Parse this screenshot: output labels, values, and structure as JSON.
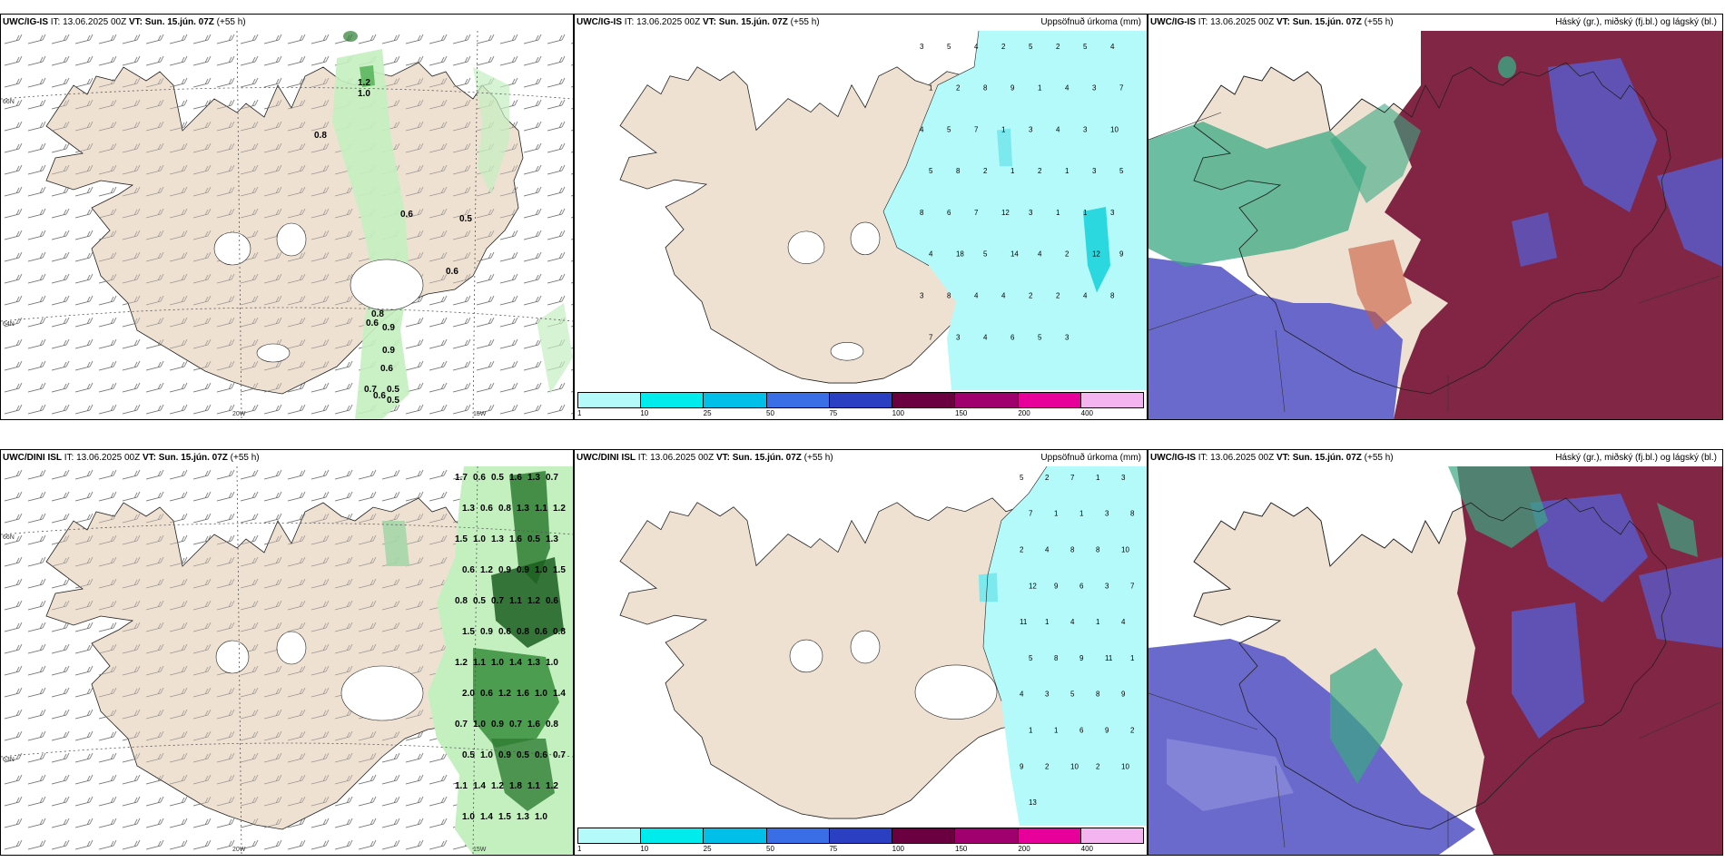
{
  "panels": {
    "p1": {
      "model": "UWC/IG-IS",
      "it": "IT: 13.06.2025 00Z",
      "vt_label": "VT:",
      "vt": "Sun. 15.jún. 07Z",
      "step": "(+55 h)",
      "right": ""
    },
    "p2": {
      "model": "UWC/IG-IS",
      "it": "IT: 13.06.2025 00Z",
      "vt_label": "VT:",
      "vt": "Sun. 15.jún. 07Z",
      "step": "(+55 h)",
      "right": "Uppsöfnuð úrkoma (mm)"
    },
    "p3": {
      "model": "UWC/IG-IS",
      "it": "IT: 13.06.2025 00Z",
      "vt_label": "VT:",
      "vt": "Sun. 15.jún. 07Z",
      "step": "(+55 h)",
      "right": "Háský (gr.), miðský (fj.bl.) og lágský (bl.)"
    },
    "p4": {
      "model": "UWC/DINI ISL",
      "it": "IT: 13.06.2025 00Z",
      "vt_label": "VT:",
      "vt": "Sun. 15.jún. 07Z",
      "step": "(+55 h)",
      "right": ""
    },
    "p5": {
      "model": "UWC/DINI ISL",
      "it": "IT: 13.06.2025 00Z",
      "vt_label": "VT:",
      "vt": "Sun. 15.jún. 07Z",
      "step": "(+55 h)",
      "right": "Uppsöfnuð úrkoma (mm)"
    },
    "p6": {
      "model": "UWC/IG-IS",
      "it": "IT: 13.06.2025 00Z",
      "vt_label": "VT:",
      "vt": "Sun. 15.jún. 07Z",
      "step": "(+55 h)",
      "right": "Háský (gr.), miðský (fj.bl.) og lágský (bl.)"
    }
  },
  "axis_labels": {
    "lon1": "20W",
    "lon2": "15W",
    "lat1": "66N",
    "lat2": "64N",
    "lat3": "63N"
  },
  "colorbar": {
    "ticks": [
      "1",
      "10",
      "25",
      "50",
      "75",
      "100",
      "150",
      "200",
      "400"
    ],
    "colors": [
      "#b4fafa",
      "#00ebeb",
      "#00bfe8",
      "#3a6ee6",
      "#2a3fc2",
      "#6a0040",
      "#a0006e",
      "#e8009a",
      "#f4b4f0"
    ]
  },
  "colors": {
    "land": "#efe1d2",
    "sea": "#ffffff",
    "precip_light": "#c4f0c0",
    "precip_dark": "#2e7d32",
    "accum": "#b4fafa",
    "cloud_high": "#3ba883",
    "cloud_mid": "#7b1a3c",
    "cloud_low": "#5a5ac8"
  },
  "p1_values": [
    "1.2",
    "1.0",
    "0.8",
    "0.6",
    "0.5",
    "0.6",
    "0.8",
    "0.6",
    "0.9",
    "0.9",
    "0.6",
    "0.7",
    "0.5",
    "0.6",
    "0.5"
  ],
  "p2_values": [
    "3",
    "5",
    "4",
    "2",
    "5",
    "2",
    "5",
    "4",
    "1",
    "2",
    "8",
    "9",
    "1",
    "4",
    "3",
    "7",
    "4",
    "5",
    "7",
    "1",
    "3",
    "4",
    "3",
    "10",
    "5",
    "8",
    "2",
    "1",
    "2",
    "1",
    "3",
    "5",
    "8",
    "6",
    "7",
    "12",
    "3",
    "1",
    "1",
    "3",
    "4",
    "18",
    "5",
    "14",
    "4",
    "2",
    "12",
    "9",
    "3",
    "8",
    "4",
    "4",
    "2",
    "2",
    "4",
    "8",
    "7",
    "3",
    "4",
    "6",
    "5",
    "3"
  ],
  "p4_values": [
    "1.7",
    "0.6",
    "0.5",
    "1.6",
    "1.3",
    "0.7",
    "1.3",
    "0.6",
    "0.8",
    "1.3",
    "1.1",
    "1.2",
    "1.5",
    "1.0",
    "1.3",
    "1.6",
    "0.5",
    "1.3",
    "0.6",
    "1.2",
    "0.9",
    "0.9",
    "1.0",
    "1.5",
    "0.8",
    "0.5",
    "0.7",
    "1.1",
    "1.2",
    "0.6",
    "1.5",
    "0.9",
    "0.6",
    "0.8",
    "0.6",
    "0.8",
    "1.2",
    "1.1",
    "1.0",
    "1.4",
    "1.3",
    "1.0",
    "2.0",
    "0.6",
    "1.2",
    "1.6",
    "1.0",
    "1.4",
    "0.7",
    "1.0",
    "0.9",
    "0.7",
    "1.6",
    "0.8",
    "0.5",
    "1.0",
    "0.9",
    "0.5",
    "0.6",
    "0.7",
    "1.1",
    "1.4",
    "1.2",
    "1.8",
    "1.1",
    "1.2",
    "1.0",
    "1.4",
    "1.5",
    "1.3",
    "1.0"
  ],
  "p5_values": [
    "5",
    "2",
    "7",
    "1",
    "3",
    "7",
    "1",
    "1",
    "3",
    "8",
    "2",
    "4",
    "8",
    "8",
    "10",
    "12",
    "9",
    "6",
    "3",
    "7",
    "11",
    "1",
    "4",
    "1",
    "4",
    "5",
    "8",
    "9",
    "11",
    "1",
    "4",
    "3",
    "5",
    "8",
    "9",
    "1",
    "1",
    "6",
    "9",
    "2",
    "9",
    "2",
    "10",
    "2",
    "10",
    "13"
  ]
}
